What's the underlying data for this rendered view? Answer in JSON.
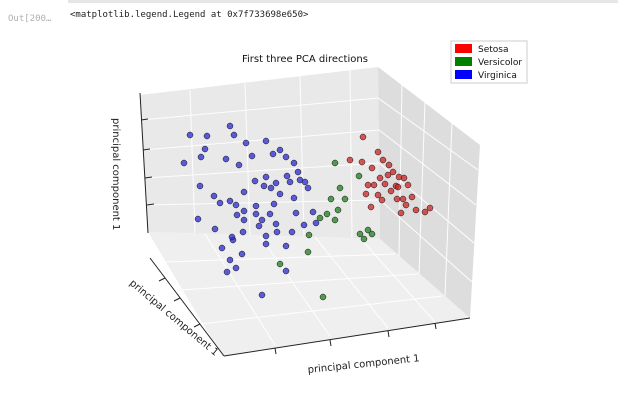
{
  "cell": {
    "out_prompt": "Out[200…",
    "out_text": "<matplotlib.legend.Legend at 0x7f733698e650>"
  },
  "chart_data": {
    "type": "scatter",
    "projection": "3d",
    "title": "First three PCA directions",
    "xlabel": "principal component 1",
    "ylabel": "principal component 1",
    "zlabel": "principal component 1",
    "grid": true,
    "legend_position": "top-right",
    "legend": [
      {
        "name": "Setosa",
        "color": "#ff0000"
      },
      {
        "name": "Versicolor",
        "color": "#008000"
      },
      {
        "name": "Virginica",
        "color": "#0000ff"
      }
    ],
    "series": [
      {
        "name": "Setosa",
        "color": "#cc2222",
        "points": [
          [
            363,
            137
          ],
          [
            378,
            152
          ],
          [
            362,
            162
          ],
          [
            350,
            160
          ],
          [
            372,
            168
          ],
          [
            383,
            160
          ],
          [
            389,
            165
          ],
          [
            393,
            172
          ],
          [
            399,
            177
          ],
          [
            404,
            178
          ],
          [
            408,
            185
          ],
          [
            396,
            186
          ],
          [
            385,
            184
          ],
          [
            380,
            178
          ],
          [
            374,
            185
          ],
          [
            366,
            194
          ],
          [
            378,
            195
          ],
          [
            391,
            191
          ],
          [
            397,
            199
          ],
          [
            403,
            199
          ],
          [
            412,
            197
          ],
          [
            406,
            205
          ],
          [
            416,
            210
          ],
          [
            425,
            212
          ],
          [
            430,
            208
          ],
          [
            401,
            213
          ],
          [
            371,
            207
          ],
          [
            368,
            185
          ],
          [
            388,
            175
          ],
          [
            398,
            187
          ],
          [
            382,
            200
          ]
        ]
      },
      {
        "name": "Versicolor",
        "color": "#1e7d1e",
        "points": [
          [
            335,
            163
          ],
          [
            359,
            176
          ],
          [
            340,
            188
          ],
          [
            331,
            199
          ],
          [
            345,
            199
          ],
          [
            338,
            210
          ],
          [
            327,
            214
          ],
          [
            335,
            220
          ],
          [
            320,
            218
          ],
          [
            360,
            234
          ],
          [
            368,
            230
          ],
          [
            372,
            234
          ],
          [
            308,
            252
          ],
          [
            364,
            239
          ],
          [
            323,
            297
          ],
          [
            280,
            264
          ],
          [
            309,
            235
          ]
        ]
      },
      {
        "name": "Virginica",
        "color": "#2a2ad0",
        "points": [
          [
            190,
            135
          ],
          [
            207,
            136
          ],
          [
            230,
            126
          ],
          [
            234,
            135
          ],
          [
            266,
            141
          ],
          [
            280,
            150
          ],
          [
            273,
            154
          ],
          [
            246,
            143
          ],
          [
            252,
            156
          ],
          [
            239,
            165
          ],
          [
            286,
            157
          ],
          [
            294,
            163
          ],
          [
            298,
            172
          ],
          [
            287,
            176
          ],
          [
            300,
            180
          ],
          [
            305,
            182
          ],
          [
            290,
            182
          ],
          [
            276,
            183
          ],
          [
            280,
            194
          ],
          [
            271,
            188
          ],
          [
            266,
            177
          ],
          [
            255,
            181
          ],
          [
            244,
            192
          ],
          [
            230,
            201
          ],
          [
            220,
            203
          ],
          [
            214,
            196
          ],
          [
            205,
            149
          ],
          [
            201,
            157
          ],
          [
            226,
            159
          ],
          [
            184,
            163
          ],
          [
            200,
            186
          ],
          [
            236,
            205
          ],
          [
            256,
            214
          ],
          [
            262,
            220
          ],
          [
            274,
            204
          ],
          [
            294,
            198
          ],
          [
            296,
            213
          ],
          [
            313,
            212
          ],
          [
            316,
            223
          ],
          [
            304,
            225
          ],
          [
            292,
            232
          ],
          [
            276,
            224
          ],
          [
            259,
            226
          ],
          [
            243,
            232
          ],
          [
            233,
            240
          ],
          [
            230,
            260
          ],
          [
            222,
            248
          ],
          [
            227,
            272
          ],
          [
            236,
            268
          ],
          [
            242,
            254
          ],
          [
            266,
            236
          ],
          [
            277,
            232
          ],
          [
            286,
            246
          ],
          [
            286,
            271
          ],
          [
            262,
            295
          ],
          [
            198,
            219
          ],
          [
            264,
            186
          ],
          [
            308,
            188
          ],
          [
            244,
            211
          ],
          [
            237,
            215
          ],
          [
            256,
            206
          ],
          [
            244,
            220
          ],
          [
            270,
            214
          ],
          [
            215,
            229
          ],
          [
            232,
            237
          ],
          [
            266,
            244
          ]
        ]
      }
    ]
  }
}
